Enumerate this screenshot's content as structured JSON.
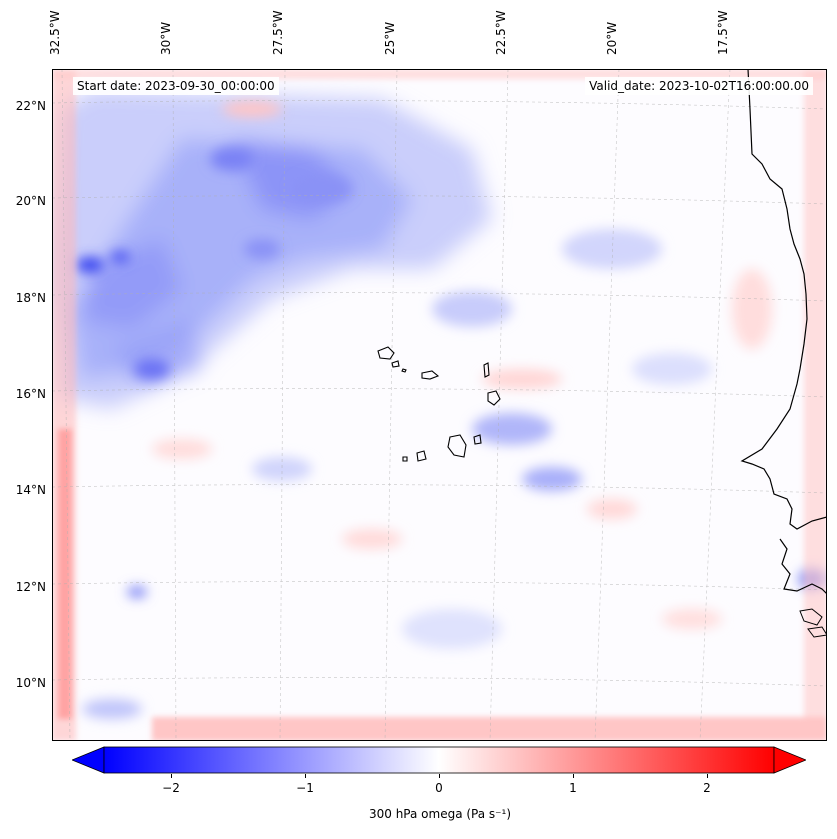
{
  "map": {
    "start_date": "Start date: 2023-09-30_00:00:00",
    "valid_date": "Valid_date: 2023-10-02T16:00:00.00",
    "lon_ticks": [
      "32.5°W",
      "30°W",
      "27.5°W",
      "25°W",
      "22.5°W",
      "20°W",
      "17.5°W"
    ],
    "lat_ticks": [
      "22°N",
      "20°N",
      "18°N",
      "16°N",
      "14°N",
      "12°N",
      "10°N"
    ],
    "lon_range_deg": [
      -33.0,
      -15.8
    ],
    "lat_range_deg": [
      8.8,
      22.8
    ],
    "field": "300 hPa omega",
    "colormap": "bwr",
    "colors": {
      "negative": "#0000ff",
      "zero": "#ffffff",
      "positive": "#ff0000",
      "coast": "#000000"
    }
  },
  "colorbar": {
    "ticks": [
      "−2",
      "−1",
      "0",
      "1",
      "2"
    ],
    "tick_values": [
      -2,
      -1,
      0,
      1,
      2
    ],
    "range": [
      -2.5,
      2.5
    ],
    "extend": "both",
    "label": "300 hPa omega (Pa s⁻¹)"
  }
}
